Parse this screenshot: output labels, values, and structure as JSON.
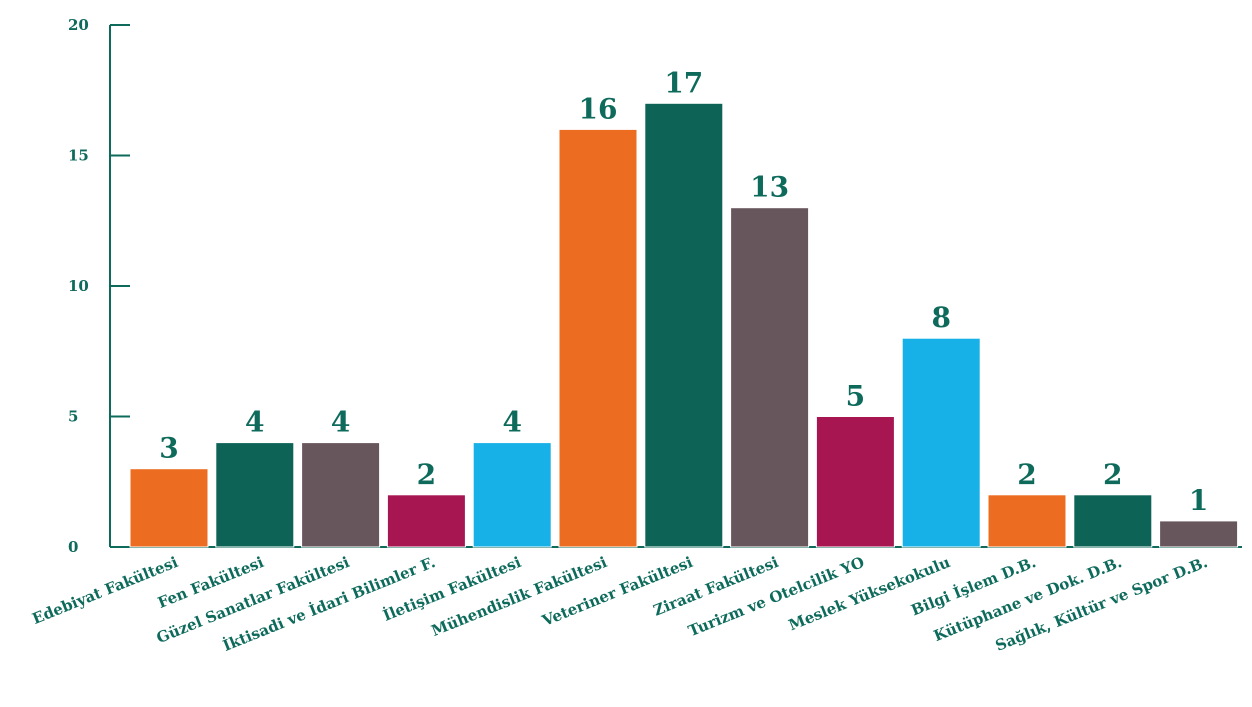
{
  "chart_data": {
    "type": "bar",
    "title": "",
    "xlabel": "",
    "ylabel": "",
    "ylim": [
      0,
      20
    ],
    "yticks": [
      0,
      5,
      10,
      15,
      20
    ],
    "grid": false,
    "categories": [
      "Edebiyat Fakültesi",
      "Fen Fakültesi",
      "Güzel Sanatlar Fakültesi",
      "İktisadi ve İdari Bilimler F.",
      "İletişim Fakültesi",
      "Mühendislik Fakültesi",
      "Veteriner Fakültesi",
      "Ziraat Fakültesi",
      "Turizm ve Otelcilik YO",
      "Meslek Yüksekokulu",
      "Bilgi İşlem D.B.",
      "Kütüphane ve Dok. D.B.",
      "Sağlık, Kültür ve Spor D.B."
    ],
    "values": [
      3,
      4,
      4,
      2,
      4,
      16,
      17,
      13,
      5,
      8,
      2,
      2,
      1
    ],
    "bar_colors": [
      "#ec6d22",
      "#0e6357",
      "#67575c",
      "#a81652",
      "#17b1e7",
      "#ec6d22",
      "#0e6357",
      "#67575c",
      "#a81652",
      "#17b1e7",
      "#ec6d22",
      "#0e6357",
      "#67575c"
    ],
    "label_color": "#0e6b5c",
    "axis_color": "#0e6b5c"
  }
}
